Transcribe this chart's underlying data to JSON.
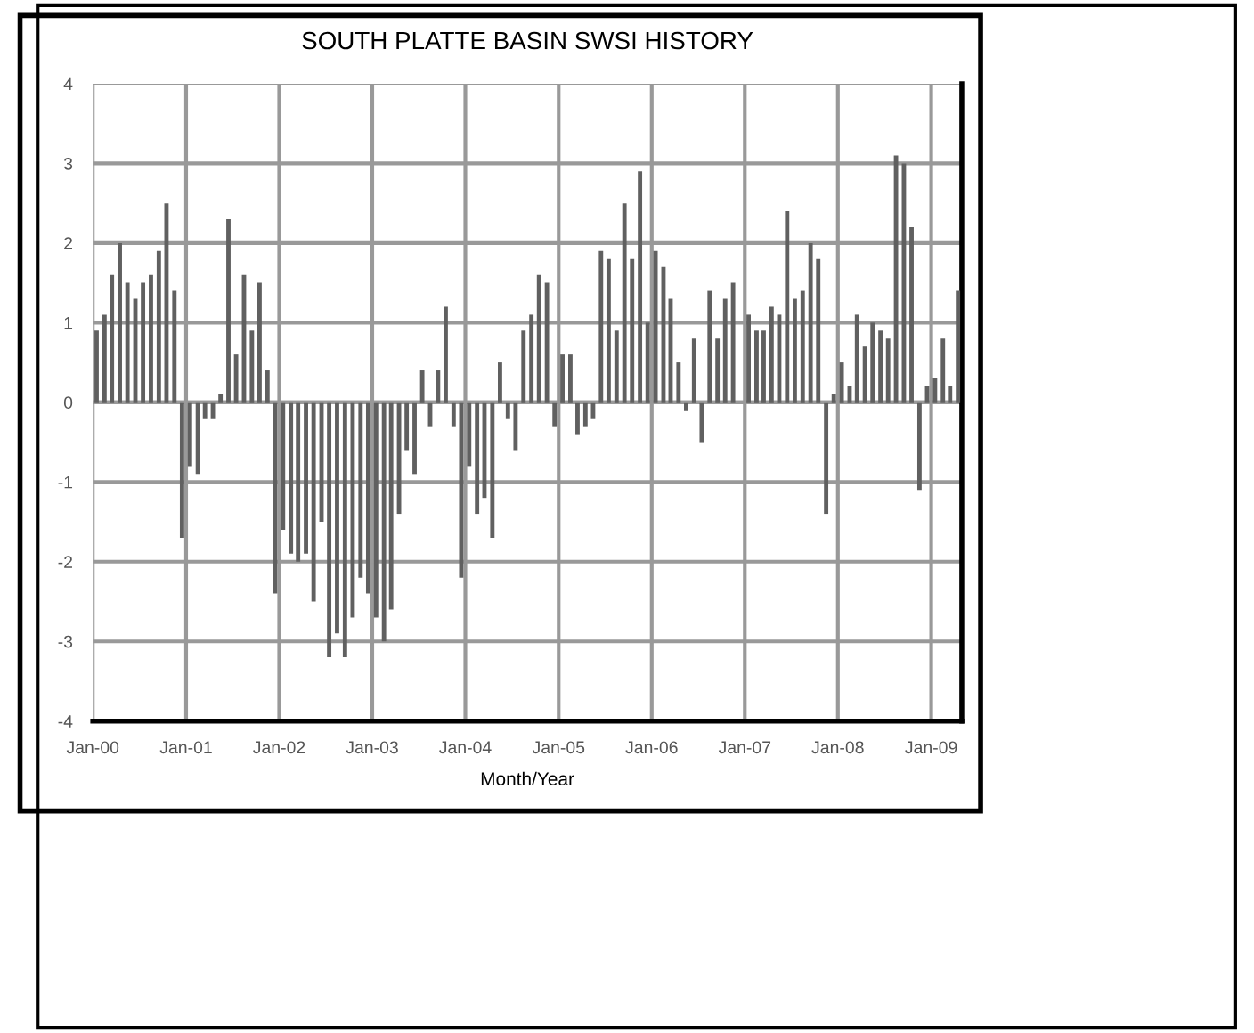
{
  "chart_data": {
    "type": "bar",
    "title": "SOUTH PLATTE BASIN SWSI HISTORY",
    "xlabel": "Month/Year",
    "color": "#606060",
    "x": [
      "2000-01",
      "2000-02",
      "2000-03",
      "2000-04",
      "2000-05",
      "2000-06",
      "2000-07",
      "2000-08",
      "2000-09",
      "2000-10",
      "2000-11",
      "2000-12",
      "2001-01",
      "2001-02",
      "2001-03",
      "2001-04",
      "2001-05",
      "2001-06",
      "2001-07",
      "2001-08",
      "2001-09",
      "2001-10",
      "2001-11",
      "2001-12",
      "2002-01",
      "2002-02",
      "2002-03",
      "2002-04",
      "2002-05",
      "2002-06",
      "2002-07",
      "2002-08",
      "2002-09",
      "2002-10",
      "2002-11",
      "2002-12",
      "2003-01",
      "2003-02",
      "2003-03",
      "2003-04",
      "2003-05",
      "2003-06",
      "2003-07",
      "2003-08",
      "2003-09",
      "2003-10",
      "2003-11",
      "2003-12",
      "2004-01",
      "2004-02",
      "2004-03",
      "2004-04",
      "2004-05",
      "2004-06",
      "2004-07",
      "2004-08",
      "2004-09",
      "2004-10",
      "2004-11",
      "2004-12",
      "2005-01",
      "2005-02",
      "2005-03",
      "2005-04",
      "2005-05",
      "2005-06",
      "2005-07",
      "2005-08",
      "2005-09",
      "2005-10",
      "2005-11",
      "2005-12",
      "2006-01",
      "2006-02",
      "2006-03",
      "2006-04",
      "2006-05",
      "2006-06",
      "2006-07",
      "2006-08",
      "2006-09",
      "2006-10",
      "2006-11",
      "2006-12",
      "2007-01",
      "2007-02",
      "2007-03",
      "2007-04",
      "2007-05",
      "2007-06",
      "2007-07",
      "2007-08",
      "2007-09",
      "2007-10",
      "2007-11",
      "2007-12",
      "2008-01",
      "2008-02",
      "2008-03",
      "2008-04",
      "2008-05",
      "2008-06",
      "2008-07",
      "2008-08",
      "2008-09",
      "2008-10",
      "2008-11",
      "2008-12",
      "2009-01",
      "2009-02",
      "2009-03",
      "2009-04"
    ],
    "values": [
      0.9,
      1.1,
      1.6,
      2.0,
      1.5,
      1.3,
      1.5,
      1.6,
      1.9,
      2.5,
      1.4,
      -1.7,
      -0.8,
      -0.9,
      -0.2,
      -0.2,
      0.1,
      2.3,
      0.6,
      1.6,
      0.9,
      1.5,
      0.4,
      -2.4,
      -1.6,
      -1.9,
      -2.0,
      -1.9,
      -2.5,
      -1.5,
      -3.2,
      -2.9,
      -3.2,
      -2.7,
      -2.2,
      -2.4,
      -2.7,
      -3.0,
      -2.6,
      -1.4,
      -0.6,
      -0.9,
      0.4,
      -0.3,
      0.4,
      1.2,
      -0.3,
      -2.2,
      -0.8,
      -1.4,
      -1.2,
      -1.7,
      0.5,
      -0.2,
      -0.6,
      0.9,
      1.1,
      1.6,
      1.5,
      -0.3,
      0.6,
      0.6,
      -0.4,
      -0.3,
      -0.2,
      1.9,
      1.8,
      0.9,
      2.5,
      1.8,
      2.9,
      1.0,
      1.9,
      1.7,
      1.3,
      0.5,
      -0.1,
      0.8,
      -0.5,
      1.4,
      0.8,
      1.3,
      1.5,
      null,
      1.1,
      0.9,
      0.9,
      1.2,
      1.1,
      2.4,
      1.3,
      1.4,
      2.0,
      1.8,
      -1.4,
      0.1,
      0.5,
      0.2,
      1.1,
      0.7,
      1.0,
      0.9,
      0.8,
      3.1,
      3.0,
      2.2,
      -1.1,
      0.2,
      0.3,
      0.8,
      0.2,
      1.4
    ],
    "xlim": [
      "2000-01",
      "2009-05"
    ],
    "xticks": [
      {
        "value": "2000-01",
        "label": "Jan-00"
      },
      {
        "value": "2001-01",
        "label": "Jan-01"
      },
      {
        "value": "2002-01",
        "label": "Jan-02"
      },
      {
        "value": "2003-01",
        "label": "Jan-03"
      },
      {
        "value": "2004-01",
        "label": "Jan-04"
      },
      {
        "value": "2005-01",
        "label": "Jan-05"
      },
      {
        "value": "2006-01",
        "label": "Jan-06"
      },
      {
        "value": "2007-01",
        "label": "Jan-07"
      },
      {
        "value": "2008-01",
        "label": "Jan-08"
      },
      {
        "value": "2009-01",
        "label": "Jan-09"
      }
    ],
    "ylim": [
      -4,
      4
    ],
    "yticks": [
      -4,
      -3,
      -2,
      -1,
      0,
      1,
      2,
      3,
      4
    ],
    "grid": true,
    "legend": false
  }
}
